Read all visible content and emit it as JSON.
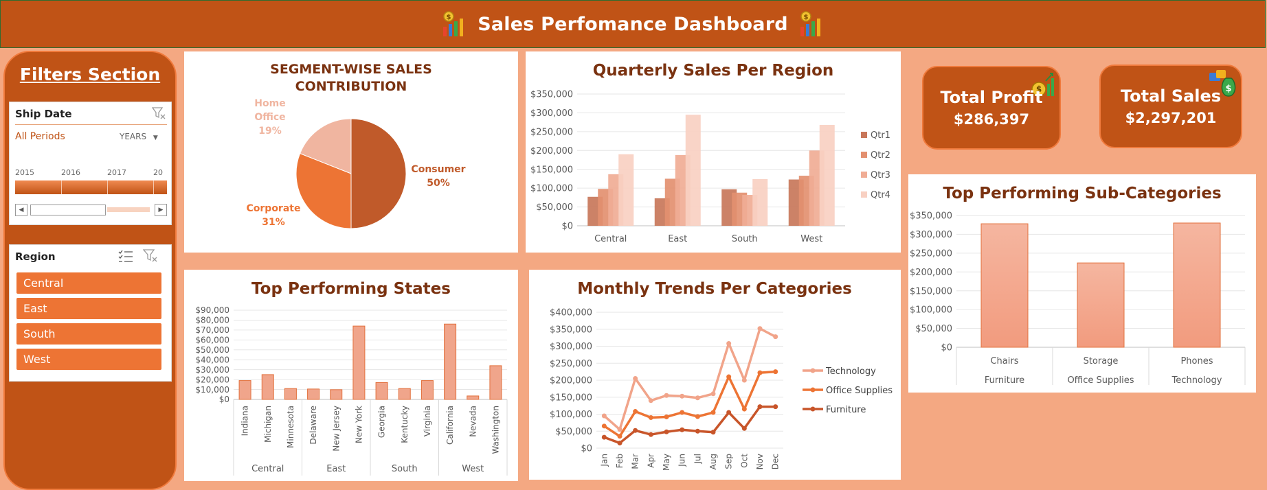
{
  "header": {
    "title": "Sales Perfomance Dashboard"
  },
  "filters": {
    "title": "Filters Section",
    "ship_date": {
      "label": "Ship Date",
      "selection": "All Periods",
      "granularity": "YEARS",
      "years": [
        "2015",
        "2016",
        "2017",
        "20"
      ]
    },
    "region": {
      "label": "Region",
      "items": [
        "Central",
        "East",
        "South",
        "West"
      ]
    }
  },
  "kpis": {
    "profit": {
      "label": "Total Profit",
      "value": "$286,397"
    },
    "sales": {
      "label": "Total Sales",
      "value": "$2,297,201"
    }
  },
  "colors": {
    "header": "#c05316",
    "background": "#f4a882",
    "accent": "#ed7434",
    "title_text": "#7a3210"
  },
  "chart_data": [
    {
      "id": "segment",
      "type": "pie",
      "title": "SEGMENT-WISE SALES CONTRIBUTION",
      "title_lines": [
        "SEGMENT-WISE SALES",
        "CONTRIBUTION"
      ],
      "slices": [
        {
          "label": "Consumer",
          "value": 50,
          "pct_label": "50%",
          "color": "#c05a2a"
        },
        {
          "label": "Corporate",
          "value": 31,
          "pct_label": "31%",
          "color": "#ed7434"
        },
        {
          "label": "Home Office",
          "label_lines": [
            "Home",
            "Office"
          ],
          "value": 19,
          "pct_label": "19%",
          "color": "#f0b5a0"
        }
      ]
    },
    {
      "id": "quarterly",
      "type": "bar",
      "title": "Quarterly Sales Per Region",
      "categories": [
        "Central",
        "East",
        "South",
        "West"
      ],
      "ylim": [
        0,
        350000
      ],
      "yticks": [
        "$0",
        "$50,000",
        "$100,000",
        "$150,000",
        "$200,000",
        "$250,000",
        "$300,000",
        "$350,000"
      ],
      "legend_position": "right",
      "series": [
        {
          "name": "Qtr1",
          "color": "#c8775a",
          "values": [
            77000,
            73000,
            97000,
            123000
          ]
        },
        {
          "name": "Qtr2",
          "color": "#e39070",
          "values": [
            98000,
            125000,
            88000,
            133000
          ]
        },
        {
          "name": "Qtr3",
          "color": "#f0ad95",
          "values": [
            137000,
            188000,
            82000,
            200000
          ]
        },
        {
          "name": "Qtr4",
          "color": "#f8d0c2",
          "values": [
            190000,
            295000,
            124000,
            268000
          ]
        }
      ]
    },
    {
      "id": "states",
      "type": "bar",
      "title": "Top Performing States",
      "categories": [
        "Indiana",
        "Michigan",
        "Minnesota",
        "Delaware",
        "New Jersey",
        "New York",
        "Georgia",
        "Kentucky",
        "Virginia",
        "California",
        "Nevada",
        "Washington"
      ],
      "groups": [
        {
          "label": "Central",
          "count": 3
        },
        {
          "label": "East",
          "count": 3
        },
        {
          "label": "South",
          "count": 3
        },
        {
          "label": "West",
          "count": 3
        }
      ],
      "values": [
        19000,
        25000,
        11000,
        10500,
        9800,
        74000,
        17000,
        11000,
        19000,
        76000,
        3500,
        34000
      ],
      "ylim": [
        0,
        90000
      ],
      "yticks": [
        "$0",
        "$10,000",
        "$20,000",
        "$30,000",
        "$40,000",
        "$50,000",
        "$60,000",
        "$70,000",
        "$80,000",
        "$90,000"
      ]
    },
    {
      "id": "monthly",
      "type": "line",
      "title": "Monthly Trends Per Categories",
      "x": [
        "Jan",
        "Feb",
        "Mar",
        "Apr",
        "May",
        "Jun",
        "Jul",
        "Aug",
        "Sep",
        "Oct",
        "Nov",
        "Dec"
      ],
      "ylim": [
        0,
        400000
      ],
      "yticks": [
        "$0",
        "$50,000",
        "$100,000",
        "$150,000",
        "$200,000",
        "$250,000",
        "$300,000",
        "$350,000",
        "$400,000"
      ],
      "legend_position": "right",
      "series": [
        {
          "name": "Technology",
          "color": "#f1a48a",
          "values": [
            95000,
            55000,
            205000,
            140000,
            155000,
            153000,
            148000,
            160000,
            308000,
            200000,
            352000,
            328000
          ]
        },
        {
          "name": "Office Supplies",
          "color": "#ed7434",
          "values": [
            65000,
            35000,
            108000,
            90000,
            92000,
            105000,
            93000,
            105000,
            210000,
            115000,
            222000,
            225000
          ]
        },
        {
          "name": "Furniture",
          "color": "#c8552a",
          "values": [
            32000,
            15000,
            52000,
            40000,
            48000,
            54000,
            50000,
            47000,
            105000,
            58000,
            122000,
            122000
          ]
        }
      ]
    },
    {
      "id": "subcat",
      "type": "bar",
      "title": "Top Performing Sub-Categories",
      "categories": [
        "Chairs",
        "Storage",
        "Phones"
      ],
      "groups": [
        {
          "label": "Furniture",
          "count": 1
        },
        {
          "label": "Office Supplies",
          "count": 1
        },
        {
          "label": "Technology",
          "count": 1
        }
      ],
      "values": [
        328000,
        224000,
        330000
      ],
      "ylim": [
        0,
        350000
      ],
      "yticks": [
        "$0",
        "$50,000",
        "$100,000",
        "$150,000",
        "$200,000",
        "$250,000",
        "$300,000",
        "$350,000"
      ]
    }
  ]
}
